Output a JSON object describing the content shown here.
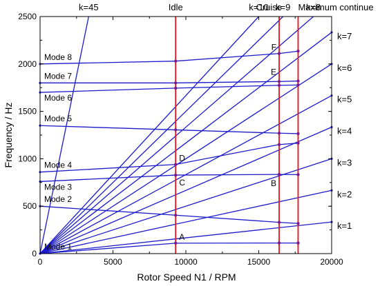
{
  "chart_data": {
    "type": "line",
    "title": "",
    "xlabel": "Rotor Speed N1 / RPM",
    "ylabel": "Frequency / Hz",
    "xlim": [
      0,
      20000
    ],
    "ylim": [
      0,
      2500
    ],
    "x_ticks": [
      "0",
      "5000",
      "10000",
      "15000",
      "20000"
    ],
    "y_ticks": [
      "0",
      "500",
      "1000",
      "1500",
      "2000",
      "2500"
    ],
    "grid": false,
    "colors": {
      "line": "#1a1acc",
      "speed_line": "#e8101a",
      "marker": "#7a1a8a"
    },
    "engine_orders": [
      {
        "label": "k=1",
        "k": 1
      },
      {
        "label": "k=2",
        "k": 2
      },
      {
        "label": "k=3",
        "k": 3
      },
      {
        "label": "k=4",
        "k": 4
      },
      {
        "label": "k=5",
        "k": 5
      },
      {
        "label": "k=6",
        "k": 6
      },
      {
        "label": "k=7",
        "k": 7
      },
      {
        "label": "k=8",
        "k": 8
      },
      {
        "label": "k=9",
        "k": 9
      },
      {
        "label": "k=10",
        "k": 10
      },
      {
        "label": "k=45",
        "k": 45
      }
    ],
    "modes": [
      {
        "name": "Mode 1",
        "x": [
          0,
          9300,
          16400,
          17700
        ],
        "y": [
          0,
          110,
          112,
          112
        ]
      },
      {
        "name": "Mode 2",
        "x": [
          0,
          9300,
          16400,
          17700
        ],
        "y": [
          500,
          405,
          330,
          318
        ]
      },
      {
        "name": "Mode 3",
        "x": [
          0,
          9300,
          16400,
          17700
        ],
        "y": [
          760,
          828,
          835,
          833
        ]
      },
      {
        "name": "Mode 4",
        "x": [
          0,
          9300,
          16400,
          17700
        ],
        "y": [
          860,
          940,
          1150,
          1165
        ]
      },
      {
        "name": "Mode 5",
        "x": [
          0,
          9300,
          16400,
          17700
        ],
        "y": [
          1350,
          1305,
          1270,
          1265
        ]
      },
      {
        "name": "Mode 6",
        "x": [
          0,
          9300,
          16400,
          17700
        ],
        "y": [
          1700,
          1745,
          1775,
          1778
        ]
      },
      {
        "name": "Mode 7",
        "x": [
          0,
          9300,
          16400,
          17700
        ],
        "y": [
          1800,
          1800,
          1815,
          1820
        ]
      },
      {
        "name": "Mode 8",
        "x": [
          0,
          9300,
          16400,
          17700
        ],
        "y": [
          2000,
          2030,
          2110,
          2135
        ]
      }
    ],
    "speed_lines": [
      {
        "name": "Idle",
        "x": 9300
      },
      {
        "name": "Cruise",
        "x": 16400
      },
      {
        "name": "Maximum continue",
        "x": 17700
      }
    ],
    "annotations": [
      {
        "text": "A",
        "x": 9300,
        "y": 110
      },
      {
        "text": "B",
        "x": 16400,
        "y": 834
      },
      {
        "text": "C",
        "x": 9300,
        "y": 828
      },
      {
        "text": "D",
        "x": 9300,
        "y": 940
      },
      {
        "text": "E",
        "x": 16400,
        "y": 1850
      },
      {
        "text": "F",
        "x": 16400,
        "y": 2110
      }
    ]
  }
}
